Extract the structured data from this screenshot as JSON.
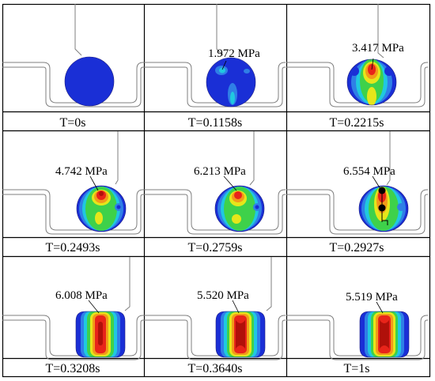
{
  "panels": [
    {
      "time": "T=0s",
      "label": ""
    },
    {
      "time": "T=0.1158s",
      "label": "1.972 MPa"
    },
    {
      "time": "T=0.2215s",
      "label": "3.417 MPa"
    },
    {
      "time": "T=0.2493s",
      "label": "4.742 MPa"
    },
    {
      "time": "T=0.2759s",
      "label": "6.213 MPa"
    },
    {
      "time": "T=0.2927s",
      "label": "6.554 MPa"
    },
    {
      "time": "T=0.3208s",
      "label": "6.008 MPa"
    },
    {
      "time": "T=0.3640s",
      "label": "5.520 MPa"
    },
    {
      "time": "T=1s",
      "label": "5.519 MPa"
    }
  ],
  "colors": {
    "blue": "#1a2fd6",
    "lightblue": "#2f7fe6",
    "cyan": "#20c8e0",
    "green": "#3ed14a",
    "yellow": "#e6e61a",
    "orange": "#f29a1a",
    "red": "#e8241a",
    "darkred": "#b0100a",
    "outline": "#7f7f7f",
    "grid": "#000000"
  }
}
